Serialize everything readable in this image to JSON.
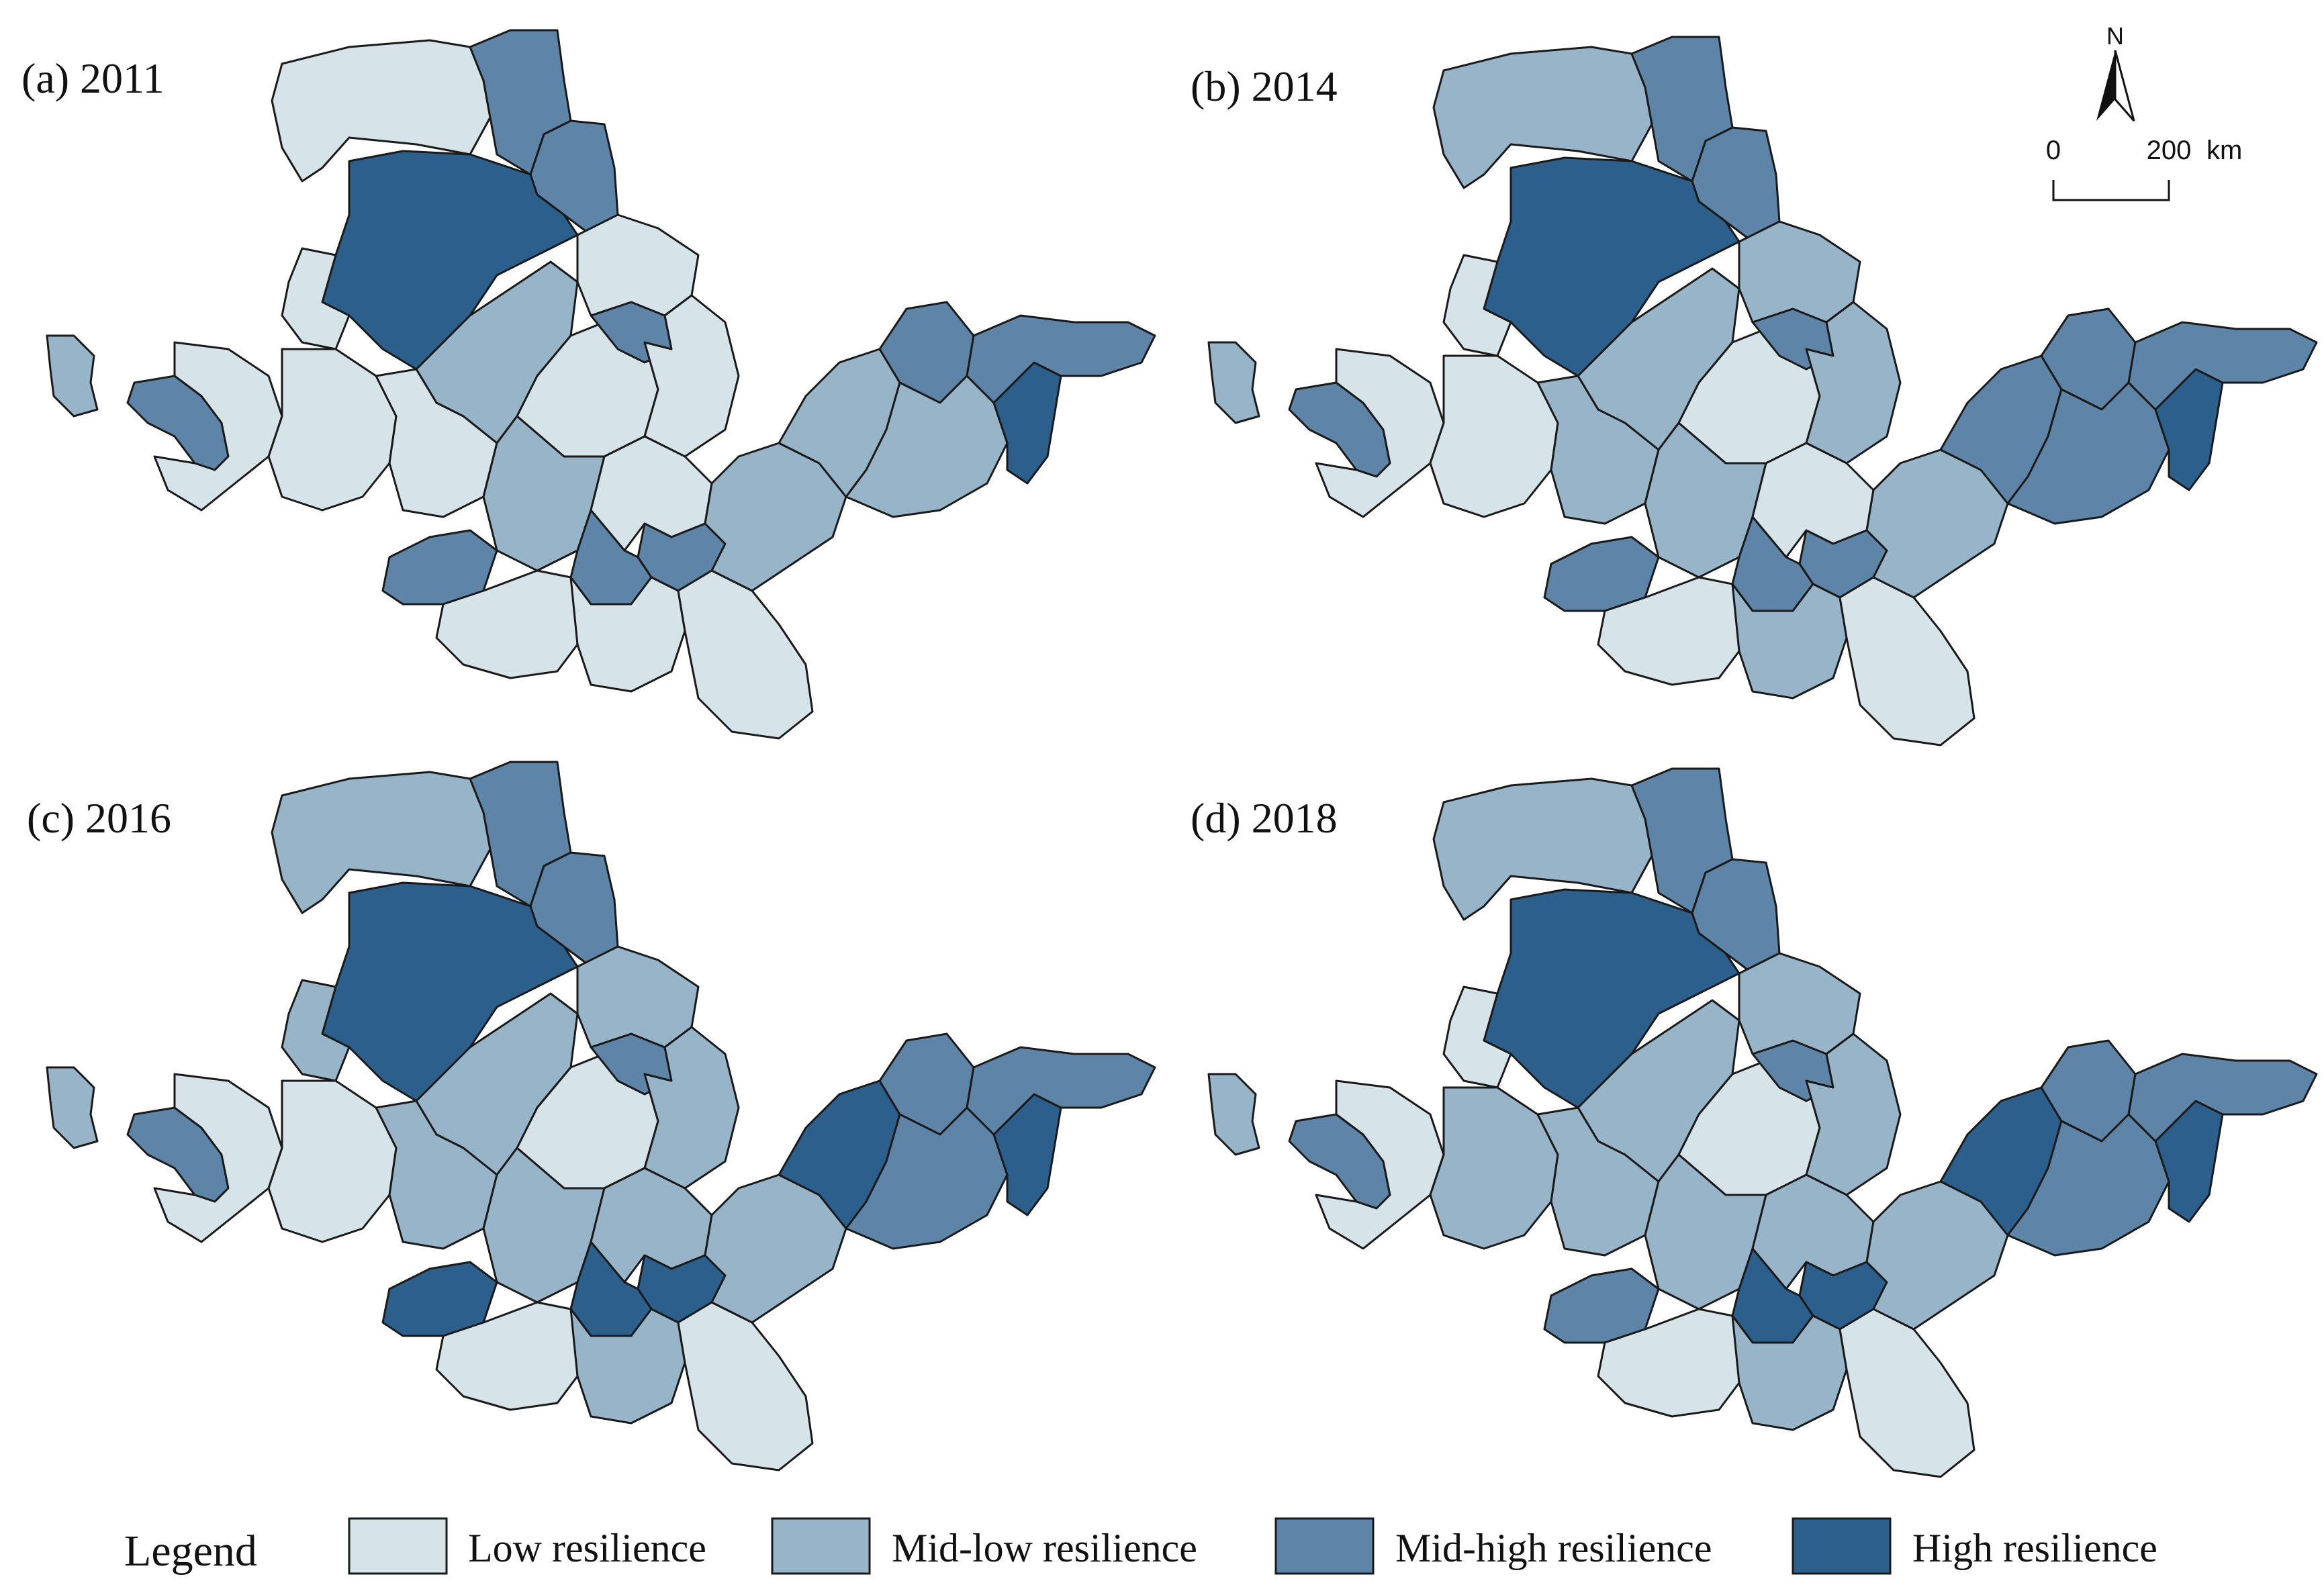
{
  "colors": {
    "low": "#d6e4ea",
    "midlow": "#98b4c8",
    "midhigh": "#5e84a8",
    "high": "#2c5f8c",
    "stroke": "#1a1a1a"
  },
  "panels": [
    {
      "label": "(a) 2011",
      "classes": {
        "north": "low",
        "ne1": "midhigh",
        "ne2": "midhigh",
        "bigcenter": "high",
        "island": "midlow",
        "west": "midhigh",
        "w2": "low",
        "w3": "low",
        "c1": "low",
        "c2": "midlow",
        "c3": "low",
        "c4": "low",
        "c5": "midhigh",
        "c6": "low",
        "c7": "midlow",
        "c8": "midhigh",
        "c9": "low",
        "c10": "low",
        "e1": "midlow",
        "e2": "midhigh",
        "e3": "midlow",
        "e4": "midlow",
        "coast": "high",
        "ne_tip": "midhigh",
        "s1": "low",
        "s2": "low",
        "s3": "low",
        "sw": "midhigh",
        "sc": "midhigh"
      }
    },
    {
      "label": "(b) 2014",
      "classes": {
        "north": "midlow",
        "ne1": "midhigh",
        "ne2": "midhigh",
        "bigcenter": "high",
        "island": "midlow",
        "west": "midhigh",
        "w2": "low",
        "w3": "low",
        "c1": "low",
        "c2": "midlow",
        "c3": "midlow",
        "c4": "low",
        "c5": "midhigh",
        "c6": "midlow",
        "c7": "midlow",
        "c8": "midhigh",
        "c9": "midlow",
        "c10": "low",
        "e1": "midhigh",
        "e2": "midhigh",
        "e3": "midhigh",
        "e4": "midlow",
        "coast": "high",
        "ne_tip": "midhigh",
        "s1": "low",
        "s2": "midlow",
        "s3": "low",
        "sw": "midhigh",
        "sc": "midhigh"
      }
    },
    {
      "label": "(c) 2016",
      "classes": {
        "north": "midlow",
        "ne1": "midhigh",
        "ne2": "midhigh",
        "bigcenter": "high",
        "island": "midlow",
        "west": "midhigh",
        "w2": "midlow",
        "w3": "low",
        "c1": "low",
        "c2": "midlow",
        "c3": "midlow",
        "c4": "low",
        "c5": "midhigh",
        "c6": "midlow",
        "c7": "midlow",
        "c8": "high",
        "c9": "midlow",
        "c10": "midlow",
        "e1": "high",
        "e2": "midhigh",
        "e3": "midhigh",
        "e4": "midlow",
        "coast": "high",
        "ne_tip": "midhigh",
        "s1": "low",
        "s2": "midlow",
        "s3": "low",
        "sw": "high",
        "sc": "high"
      }
    },
    {
      "label": "(d) 2018",
      "classes": {
        "north": "midlow",
        "ne1": "midhigh",
        "ne2": "midhigh",
        "bigcenter": "high",
        "island": "midlow",
        "west": "midhigh",
        "w2": "low",
        "w3": "low",
        "c1": "midlow",
        "c2": "midlow",
        "c3": "midlow",
        "c4": "low",
        "c5": "midhigh",
        "c6": "midlow",
        "c7": "midlow",
        "c8": "high",
        "c9": "midlow",
        "c10": "midlow",
        "e1": "high",
        "e2": "midhigh",
        "e3": "midhigh",
        "e4": "midlow",
        "coast": "high",
        "ne_tip": "midhigh",
        "s1": "low",
        "s2": "midlow",
        "s3": "low",
        "sw": "midhigh",
        "sc": "high"
      }
    }
  ],
  "north_arrow": {
    "label": "N"
  },
  "scale_bar": {
    "start": "0",
    "end": "200",
    "unit": "km"
  },
  "legend": {
    "title": "Legend",
    "items": [
      {
        "key": "low",
        "label": "Low resilience"
      },
      {
        "key": "midlow",
        "label": "Mid-low resilience"
      },
      {
        "key": "midhigh",
        "label": "Mid-high resilience"
      },
      {
        "key": "high",
        "label": "High resilience"
      }
    ]
  }
}
